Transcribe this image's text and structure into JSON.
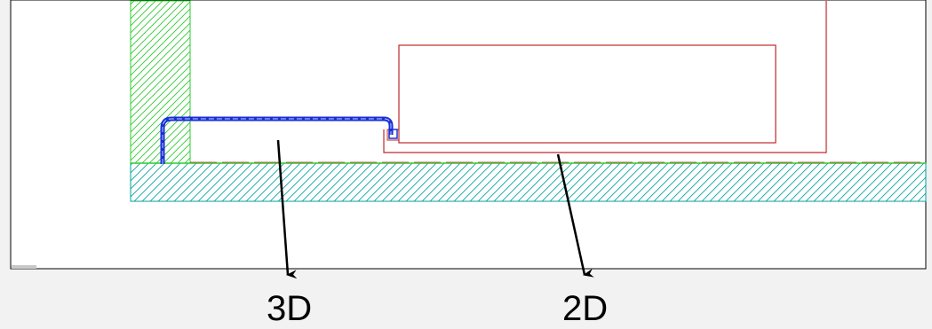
{
  "labels": {
    "left": "3D",
    "right": "2D"
  },
  "colors": {
    "viewport_background": "#ffffff",
    "page_background": "#f2f2f2",
    "viewport_border": "#000000",
    "wall_hatch": "#2ecc2e",
    "floor_hatch": "#00a0a0",
    "floor_edge": "#2ecc2e",
    "outline_2d": "#c0282a",
    "pipe_3d": "#1a2ed6",
    "arrow": "#000000"
  }
}
